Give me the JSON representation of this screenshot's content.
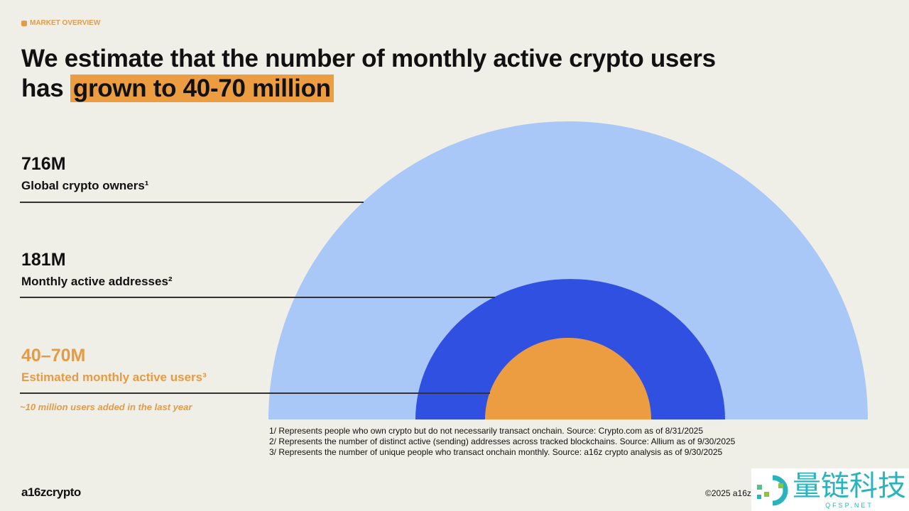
{
  "section_label": "MARKET OVERVIEW",
  "title": {
    "line1": "We estimate that the number of monthly active crypto users",
    "prefix": "has",
    "highlight": "grown to 40-70 million"
  },
  "tiers": [
    {
      "value": "716M",
      "label": "Global crypto owners¹",
      "color": "#a9c8f7"
    },
    {
      "value": "181M",
      "label": "Monthly active addresses²",
      "color": "#2f50e0"
    },
    {
      "value": "40–70M",
      "label": "Estimated monthly active users³",
      "color": "#ec9d42"
    }
  ],
  "note": "~10 million users added in the last year",
  "footnotes": [
    "1/ Represents people who own crypto but do not necessarily transact onchain. Source: Crypto.com as of 8/31/2025",
    "2/ Represents the number of distinct active (sending) addresses across tracked blockchains. Source: Allium as of 9/30/2025",
    "3/ Represents the number of unique people who transact onchain monthly. Source: a16z crypto analysis as of 9/30/2025"
  ],
  "logo": "a16zcrypto",
  "copyright": "©2025 a16z",
  "watermark": {
    "cn": "量链科技",
    "en": "QFSP.NET"
  }
}
